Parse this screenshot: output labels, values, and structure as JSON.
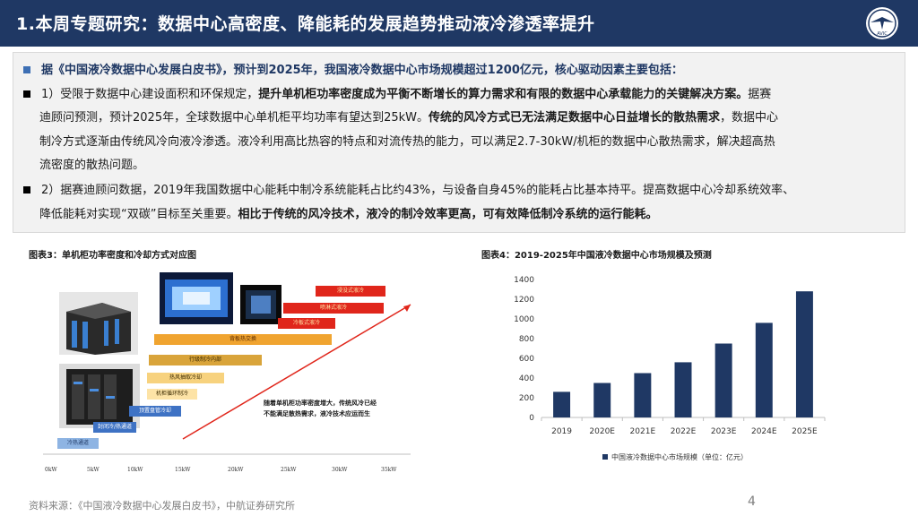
{
  "header": {
    "title": "1.本周专题研究：数据中心高密度、降能耗的发展趋势推动液冷渗透率提升",
    "logo_icon": "aviation-industry-logo",
    "logo_text": "AVIC"
  },
  "summary": {
    "line1": "据《中国液冷数据中心发展白皮书》，预计到2025年，我国液冷数据中心市场规模超过1200亿元，核心驱动因素主要包括：",
    "p1_l1_a": "1）受限于数据中心建设面积和环保规定，",
    "p1_l1_b": "提升单机柜功率密度成为平衡不断增长的算力需求和有限的数据中心承载能力的关键解决方案。",
    "p1_l1_c": "据赛",
    "p1_l2_a": "迪顾问预测，预计2025年，全球数据中心单机柜平均功率有望达到25kW。",
    "p1_l2_b": "传统的风冷方式已无法满足数据中心日益增长的散热需求",
    "p1_l2_c": "，数据中心",
    "p1_l3": "制冷方式逐渐由传统风冷向液冷渗透。液冷利用高比热容的特点和对流传热的能力，可以满足2.7-30kW/机柜的数据中心散热需求，解决超高热",
    "p1_l4": "流密度的散热问题。",
    "p2_l1": "2）据赛迪顾问数据，2019年我国数据中心能耗中制冷系统能耗占比约43%，与设备自身45%的能耗占比基本持平。提高数据中心冷却系统效率、",
    "p2_l2_a": "降低能耗对实现“双碳”目标至关重要。",
    "p2_l2_b": "相比于传统的风冷技术，液冷的制冷效率更高，可有效降低制冷系统的运行能耗。"
  },
  "fig3": {
    "title": "图表3：单机柜功率密度和冷却方式对应图",
    "x_ticks": [
      "0kW",
      "5kW",
      "10kW",
      "15kW",
      "20kW",
      "25kW",
      "30kW",
      "35kW"
    ],
    "bars": [
      "浸没式液冷",
      "喷淋式液冷",
      "冷板式液冷",
      "背板热交换",
      "行级制冷内部",
      "热风抽取冷却",
      "机柜循环制冷",
      "顶置盘管冷却",
      "封闭冷/热通道",
      "冷热通道"
    ],
    "annotation_l1": "随着单机柜功率密度增大，传统风冷已经",
    "annotation_l2": "不能满足散热需求，液冷技术应运而生",
    "colors": {
      "red": "#e0261b",
      "orange": "#f0a430",
      "gold": "#d9a43a",
      "light": "#f7d27e",
      "blue": "#3e72c4",
      "lightblue": "#8eb4e3"
    }
  },
  "fig4": {
    "title": "图表4：2019-2025年中国液冷数据中心市场规模及预测",
    "legend": "中国液冷数据中心市场规模（单位：亿元）"
  },
  "chart_data": {
    "type": "bar",
    "categories": [
      "2019",
      "2020E",
      "2021E",
      "2022E",
      "2023E",
      "2024E",
      "2025E"
    ],
    "series": [
      {
        "name": "中国液冷数据中心市场规模（单位：亿元）",
        "values": [
          260,
          350,
          450,
          560,
          750,
          960,
          1280
        ]
      }
    ],
    "y_ticks": [
      "0",
      "200",
      "400",
      "600",
      "800",
      "1000",
      "1200",
      "1400"
    ],
    "ylim": [
      0,
      1400
    ],
    "grid": false,
    "legend_position": "bottom",
    "color": "#1f3864"
  },
  "footer": {
    "source": "资料来源：《中国液冷数据中心发展白皮书》，中航证券研究所",
    "page": "4"
  }
}
